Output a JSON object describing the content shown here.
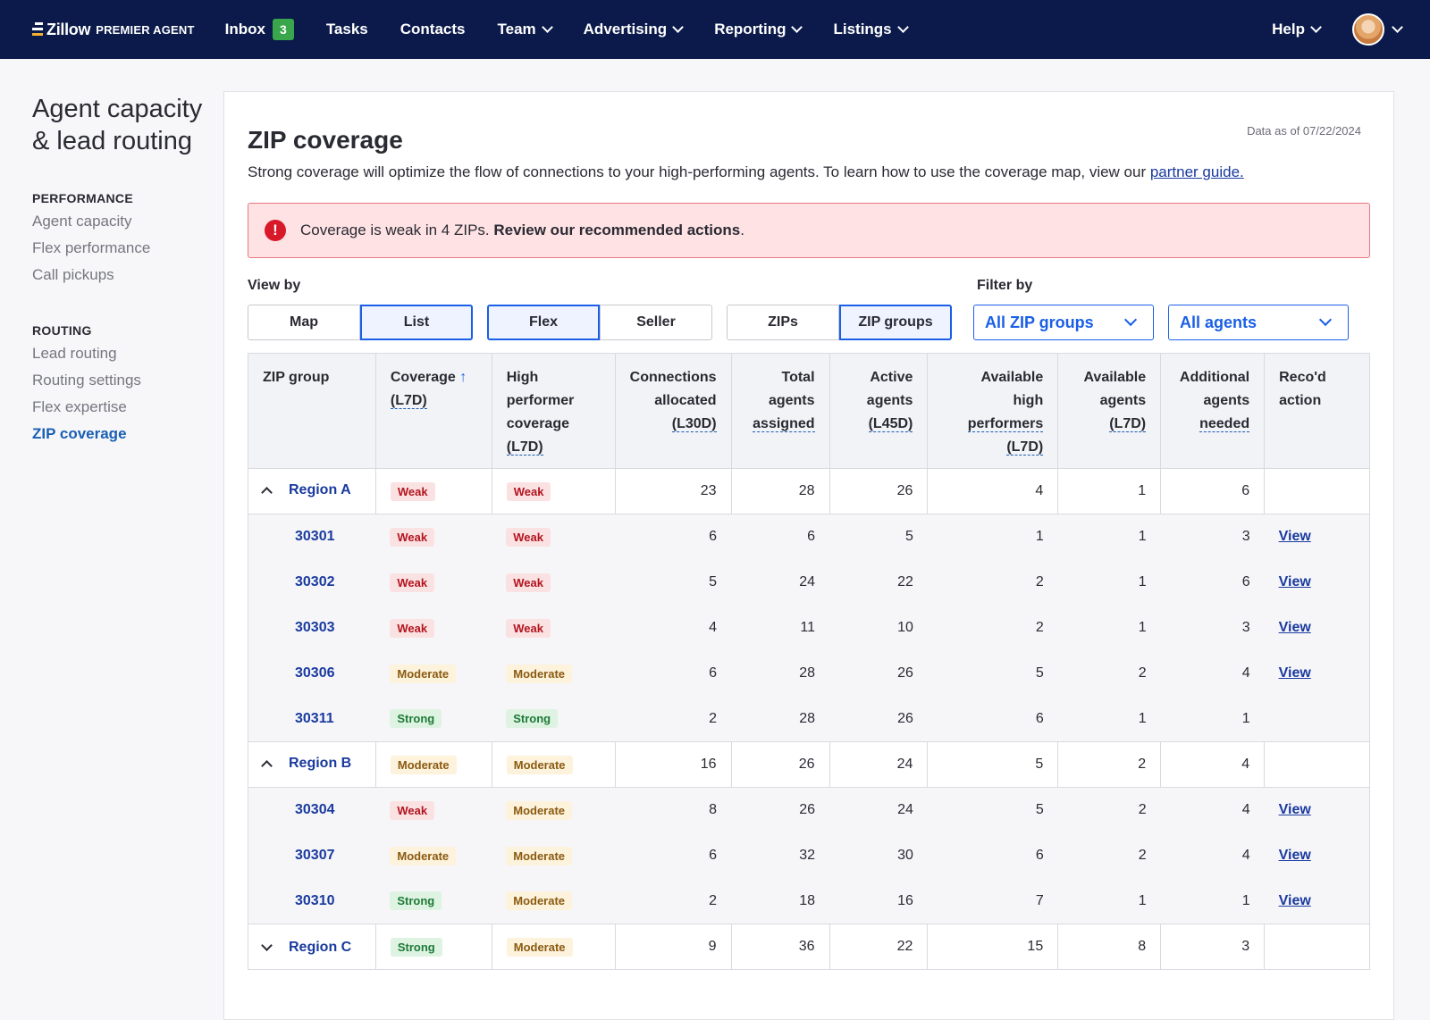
{
  "nav": {
    "logo_word": "Zillow",
    "logo_sub": "PREMIER AGENT",
    "items": [
      {
        "label": "Inbox",
        "count": "3"
      },
      {
        "label": "Tasks"
      },
      {
        "label": "Contacts"
      },
      {
        "label": "Team"
      },
      {
        "label": "Advertising"
      },
      {
        "label": "Reporting"
      },
      {
        "label": "Listings"
      }
    ],
    "help": "Help"
  },
  "sidebar": {
    "title": "Agent capacity & lead routing",
    "performance_heading": "PERFORMANCE",
    "performance_links": [
      "Agent capacity",
      "Flex performance",
      "Call pickups"
    ],
    "routing_heading": "ROUTING",
    "routing_links": [
      "Lead routing",
      "Routing settings",
      "Flex expertise",
      "ZIP coverage"
    ]
  },
  "page": {
    "title": "ZIP coverage",
    "data_as_of": "Data as of 07/22/2024",
    "intro": "Strong coverage will optimize the flow of connections to your high-performing agents. To learn how to use the coverage map, view our ",
    "intro_link": "partner guide.",
    "alert_text": "Coverage is weak in 4 ZIPs. ",
    "alert_bold": "Review our recommended actions",
    "alert_end": "."
  },
  "controls": {
    "view_by_label": "View by",
    "filter_by_label": "Filter by",
    "view_toggle": [
      "Map",
      "List"
    ],
    "view_selected": "List",
    "type_toggle": [
      "Flex",
      "Seller"
    ],
    "type_selected": "Flex",
    "group_toggle": [
      "ZIPs",
      "ZIP groups"
    ],
    "group_selected": "ZIP groups",
    "zip_filter_value": "All ZIP groups",
    "agent_filter_value": "All agents"
  },
  "table": {
    "headers": {
      "zip_group": "ZIP group",
      "coverage_1": "Coverage",
      "coverage_2": "(L7D)",
      "hp_1": "High",
      "hp_2": "performer",
      "hp_3": "coverage",
      "hp_4": "(L7D)",
      "conn_1": "Connections",
      "conn_2": "allocated",
      "conn_3": "(L30D)",
      "total_1": "Total",
      "total_2": "agents",
      "total_3": "assigned",
      "active_1": "Active",
      "active_2": "agents",
      "active_3": "(L45D)",
      "avhp_1": "Available",
      "avhp_2": "high",
      "avhp_3": "performers",
      "avhp_4": "(L7D)",
      "avag_1": "Available",
      "avag_2": "agents",
      "avag_3": "(L7D)",
      "add_1": "Additional",
      "add_2": "agents",
      "add_3": "needed",
      "rec_1": "Reco'd",
      "rec_2": "action"
    },
    "rows": [
      {
        "kind": "region",
        "expanded": true,
        "name": "Region A",
        "coverage": "Weak",
        "hp": "Weak",
        "conn": "23",
        "total": "28",
        "active": "26",
        "avhp": "4",
        "avag": "1",
        "add": "6",
        "action": ""
      },
      {
        "kind": "zip",
        "name": "30301",
        "coverage": "Weak",
        "hp": "Weak",
        "conn": "6",
        "total": "6",
        "active": "5",
        "avhp": "1",
        "avag": "1",
        "add": "3",
        "action": "View"
      },
      {
        "kind": "zip",
        "name": "30302",
        "coverage": "Weak",
        "hp": "Weak",
        "conn": "5",
        "total": "24",
        "active": "22",
        "avhp": "2",
        "avag": "1",
        "add": "6",
        "action": "View"
      },
      {
        "kind": "zip",
        "name": "30303",
        "coverage": "Weak",
        "hp": "Weak",
        "conn": "4",
        "total": "11",
        "active": "10",
        "avhp": "2",
        "avag": "1",
        "add": "3",
        "action": "View"
      },
      {
        "kind": "zip",
        "name": "30306",
        "coverage": "Moderate",
        "hp": "Moderate",
        "conn": "6",
        "total": "28",
        "active": "26",
        "avhp": "5",
        "avag": "2",
        "add": "4",
        "action": "View"
      },
      {
        "kind": "zip",
        "name": "30311",
        "coverage": "Strong",
        "hp": "Strong",
        "conn": "2",
        "total": "28",
        "active": "26",
        "avhp": "6",
        "avag": "1",
        "add": "1",
        "action": ""
      },
      {
        "kind": "region",
        "expanded": true,
        "name": "Region B",
        "coverage": "Moderate",
        "hp": "Moderate",
        "conn": "16",
        "total": "26",
        "active": "24",
        "avhp": "5",
        "avag": "2",
        "add": "4",
        "action": ""
      },
      {
        "kind": "zip",
        "name": "30304",
        "coverage": "Weak",
        "hp": "Moderate",
        "conn": "8",
        "total": "26",
        "active": "24",
        "avhp": "5",
        "avag": "2",
        "add": "4",
        "action": "View"
      },
      {
        "kind": "zip",
        "name": "30307",
        "coverage": "Moderate",
        "hp": "Moderate",
        "conn": "6",
        "total": "32",
        "active": "30",
        "avhp": "6",
        "avag": "2",
        "add": "4",
        "action": "View"
      },
      {
        "kind": "zip",
        "name": "30310",
        "coverage": "Strong",
        "hp": "Moderate",
        "conn": "2",
        "total": "18",
        "active": "16",
        "avhp": "7",
        "avag": "1",
        "add": "1",
        "action": "View"
      },
      {
        "kind": "region",
        "expanded": false,
        "name": "Region C",
        "coverage": "Strong",
        "hp": "Moderate",
        "conn": "9",
        "total": "36",
        "active": "22",
        "avhp": "15",
        "avag": "8",
        "add": "3",
        "action": ""
      }
    ]
  },
  "colors": {
    "nav_bg": "#0b1a4a",
    "accent": "#1a5fe6",
    "link": "#1a3a9e",
    "weak": "#b3141f",
    "moderate": "#8a5a10",
    "strong": "#1d7a36",
    "alert_bg": "#ffe2e4"
  }
}
